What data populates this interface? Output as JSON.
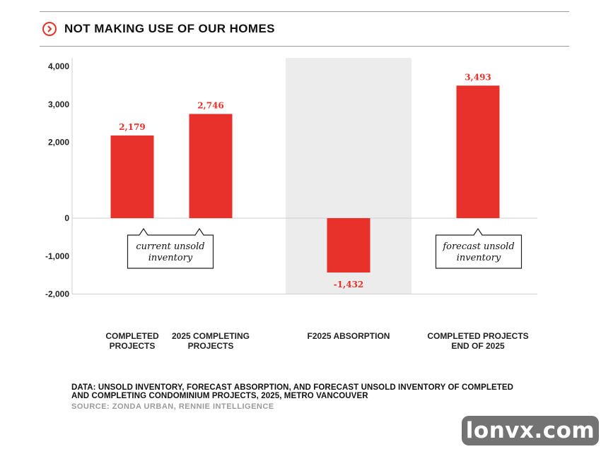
{
  "header": {
    "title": "NOT MAKING USE OF OUR HOMES",
    "icon": "chevron-right-circle-icon"
  },
  "colors": {
    "accent": "#e8312a",
    "shade": "#ececec",
    "text": "#111111",
    "muted": "#9a9a9a"
  },
  "chart_data": {
    "type": "bar",
    "categories": [
      "COMPLETED PROJECTS",
      "2025 COMPLETING PROJECTS",
      "F2025 ABSORPTION",
      "COMPLETED PROJECTS END OF 2025"
    ],
    "values": [
      2179,
      2746,
      -1432,
      3493
    ],
    "data_labels": [
      "2,179",
      "2,746",
      "-1,432",
      "3,493"
    ],
    "y_ticks": [
      4000,
      3000,
      2000,
      0,
      -1000,
      -2000
    ],
    "y_tick_labels": [
      "4,000",
      "3,000",
      "2,000",
      "0",
      "-1,000",
      "-2,000"
    ],
    "ylim": [
      -2000,
      4000
    ],
    "highlighted_category": "F2025 ABSORPTION",
    "annotations": [
      {
        "text": "current unsold inventory",
        "lines": [
          "current unsold",
          "inventory"
        ],
        "refers_to": [
          "COMPLETED PROJECTS",
          "2025 COMPLETING PROJECTS"
        ]
      },
      {
        "text": "forecast unsold inventory",
        "lines": [
          "forecast unsold",
          "inventory"
        ],
        "refers_to": [
          "COMPLETED PROJECTS END OF 2025"
        ]
      }
    ],
    "grid": false,
    "legend": "none"
  },
  "footer": {
    "data_note": "DATA: UNSOLD INVENTORY, FORECAST ABSORPTION, AND FORECAST UNSOLD INVENTORY OF COMPLETED AND COMPLETING CONDOMINIUM PROJECTS, 2025, METRO VANCOUVER",
    "source": "SOURCE: ZONDA URBAN, RENNIE INTELLIGENCE"
  },
  "watermark": "lonvx.com"
}
